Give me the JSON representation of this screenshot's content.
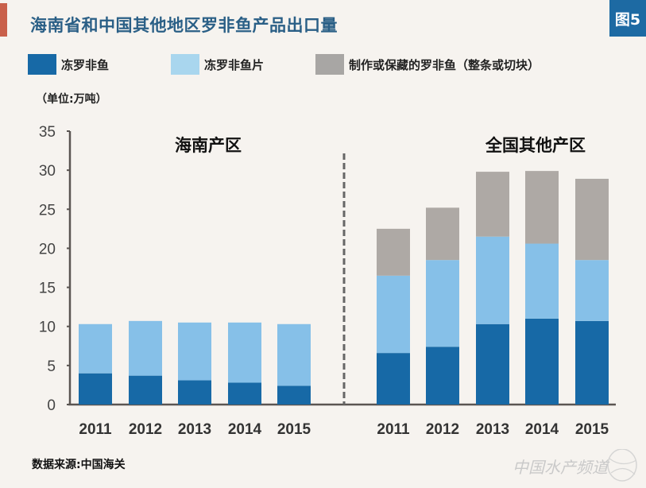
{
  "header": {
    "title": "海南省和中国其他地区罗非鱼产品出口量",
    "figure_label": "图5"
  },
  "unit_label": "（单位:万吨）",
  "source_label": "数据来源:中国海关",
  "watermark": "中国水产频道",
  "colors": {
    "frozen_tilapia": "#1769a6",
    "frozen_fillet": "#86c0e8",
    "prepared": "#aea9a5",
    "axis": "#5a5552",
    "title": "#2a5f86"
  },
  "chart_data": {
    "type": "bar",
    "stacked": true,
    "title": "海南省和中国其他地区罗非鱼产品出口量",
    "ylabel": "（单位:万吨）",
    "ylim": [
      0,
      35
    ],
    "yticks": [
      "0",
      "5",
      "10",
      "15",
      "20",
      "25",
      "30",
      "35"
    ],
    "legend": [
      "冻罗非鱼",
      "冻罗非鱼片",
      "制作或保藏的罗非鱼（整条或切块）"
    ],
    "legend_position": "top",
    "panels": [
      {
        "name": "海南产区",
        "categories": [
          "2011",
          "2012",
          "2013",
          "2014",
          "2015"
        ],
        "series": [
          {
            "name": "冻罗非鱼",
            "values": [
              4.0,
              3.7,
              3.1,
              2.8,
              2.4
            ]
          },
          {
            "name": "冻罗非鱼片",
            "values": [
              6.3,
              7.0,
              7.4,
              7.7,
              7.9
            ]
          },
          {
            "name": "制作或保藏的罗非鱼（整条或切块）",
            "values": [
              0,
              0,
              0,
              0,
              0
            ]
          }
        ]
      },
      {
        "name": "全国其他产区",
        "categories": [
          "2011",
          "2012",
          "2013",
          "2014",
          "2015"
        ],
        "series": [
          {
            "name": "冻罗非鱼",
            "values": [
              6.6,
              7.4,
              10.3,
              11.0,
              10.7
            ]
          },
          {
            "name": "冻罗非鱼片",
            "values": [
              9.9,
              11.1,
              11.2,
              9.6,
              7.8
            ]
          },
          {
            "name": "制作或保藏的罗非鱼（整条或切块）",
            "values": [
              6.0,
              6.7,
              8.3,
              9.3,
              10.4
            ]
          }
        ]
      }
    ]
  }
}
